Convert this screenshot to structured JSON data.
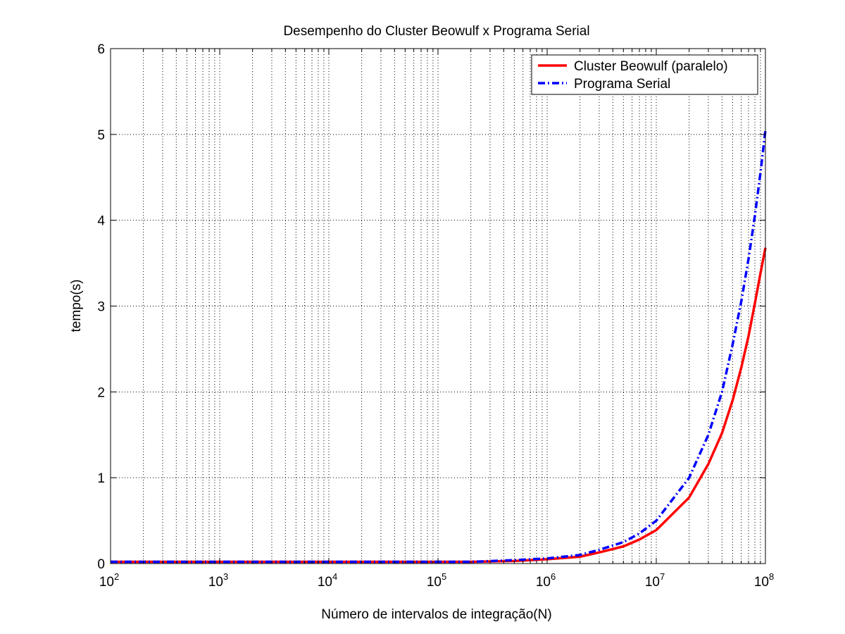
{
  "chart_data": {
    "type": "line",
    "title": "Desempenho do Cluster Beowulf x Programa Serial",
    "xlabel": "Número de intervalos de integração(N)",
    "ylabel": "tempo(s)",
    "xscale": "log",
    "xlim": [
      100,
      100000000
    ],
    "ylim": [
      0,
      6
    ],
    "grid": true,
    "legend_position": "top-right",
    "x_ticks": [
      {
        "base": "10",
        "exp": "2"
      },
      {
        "base": "10",
        "exp": "3"
      },
      {
        "base": "10",
        "exp": "4"
      },
      {
        "base": "10",
        "exp": "5"
      },
      {
        "base": "10",
        "exp": "6"
      },
      {
        "base": "10",
        "exp": "7"
      },
      {
        "base": "10",
        "exp": "8"
      }
    ],
    "y_ticks": [
      "0",
      "1",
      "2",
      "3",
      "4",
      "5",
      "6"
    ],
    "series": [
      {
        "name": "Cluster Beowulf (paralelo)",
        "color": "#ff0000",
        "style": "solid",
        "x": [
          100,
          1000,
          10000,
          100000,
          200000,
          500000,
          1000000,
          2000000,
          3000000,
          5000000,
          7000000,
          10000000,
          20000000,
          30000000,
          40000000,
          50000000,
          60000000,
          70000000,
          80000000,
          90000000,
          100000000
        ],
        "y": [
          0.02,
          0.02,
          0.02,
          0.02,
          0.02,
          0.03,
          0.05,
          0.08,
          0.13,
          0.2,
          0.28,
          0.39,
          0.77,
          1.16,
          1.52,
          1.9,
          2.28,
          2.65,
          3.03,
          3.38,
          3.68
        ]
      },
      {
        "name": "Programa Serial",
        "color": "#0000ff",
        "style": "dashdot",
        "x": [
          100,
          1000,
          10000,
          100000,
          200000,
          500000,
          1000000,
          2000000,
          3000000,
          5000000,
          7000000,
          10000000,
          20000000,
          30000000,
          40000000,
          50000000,
          60000000,
          70000000,
          80000000,
          90000000,
          100000000
        ],
        "y": [
          0.02,
          0.02,
          0.02,
          0.02,
          0.02,
          0.04,
          0.06,
          0.1,
          0.16,
          0.25,
          0.35,
          0.5,
          1.0,
          1.5,
          2.0,
          2.55,
          3.05,
          3.55,
          4.05,
          4.55,
          5.05
        ]
      }
    ]
  }
}
